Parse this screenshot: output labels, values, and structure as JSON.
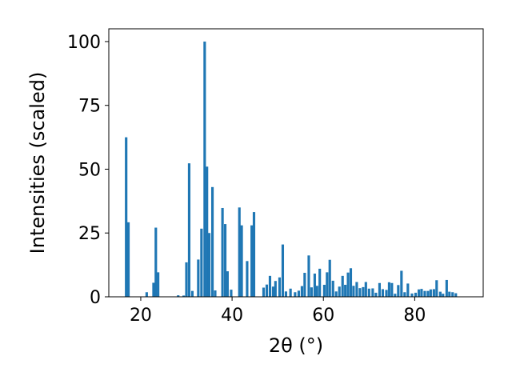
{
  "chart_data": {
    "type": "bar",
    "title": "",
    "xlabel": "2θ (°)",
    "ylabel": "Intensities (scaled)",
    "xlim": [
      13,
      95
    ],
    "ylim": [
      0,
      105
    ],
    "xticks": [
      20,
      40,
      60,
      80
    ],
    "yticks": [
      0,
      25,
      50,
      75,
      100
    ],
    "bar_color": "#1f77b4",
    "grid": false,
    "legend": "none",
    "bar_width": 0.55,
    "points": [
      [
        16.8,
        62.5
      ],
      [
        17.3,
        29.2
      ],
      [
        21.3,
        1.8
      ],
      [
        22.8,
        5.5
      ],
      [
        23.3,
        27.1
      ],
      [
        23.8,
        9.6
      ],
      [
        28.2,
        0.6
      ],
      [
        29.4,
        0.5
      ],
      [
        30.0,
        13.5
      ],
      [
        30.6,
        52.3
      ],
      [
        31.3,
        2.3
      ],
      [
        32.6,
        14.6
      ],
      [
        33.3,
        26.7
      ],
      [
        34.0,
        100.0
      ],
      [
        34.5,
        51.0
      ],
      [
        35.0,
        25.0
      ],
      [
        35.7,
        43.0
      ],
      [
        36.3,
        2.5
      ],
      [
        37.9,
        34.8
      ],
      [
        38.5,
        28.5
      ],
      [
        39.0,
        10.0
      ],
      [
        39.8,
        2.8
      ],
      [
        41.6,
        35.0
      ],
      [
        42.1,
        28.0
      ],
      [
        43.3,
        14.0
      ],
      [
        44.3,
        28.0
      ],
      [
        44.8,
        33.2
      ],
      [
        46.9,
        3.6
      ],
      [
        47.6,
        4.8
      ],
      [
        48.3,
        8.2
      ],
      [
        49.0,
        4.0
      ],
      [
        49.5,
        6.2
      ],
      [
        50.4,
        7.6
      ],
      [
        51.1,
        20.5
      ],
      [
        51.8,
        2.1
      ],
      [
        52.8,
        3.2
      ],
      [
        53.8,
        1.8
      ],
      [
        54.6,
        2.4
      ],
      [
        55.3,
        4.2
      ],
      [
        55.9,
        9.4
      ],
      [
        56.8,
        16.2
      ],
      [
        57.4,
        3.7
      ],
      [
        58.1,
        9.1
      ],
      [
        58.6,
        4.3
      ],
      [
        59.2,
        11.0
      ],
      [
        60.2,
        4.7
      ],
      [
        60.8,
        9.6
      ],
      [
        61.4,
        14.5
      ],
      [
        62.1,
        6.3
      ],
      [
        62.8,
        2.1
      ],
      [
        63.5,
        4.0
      ],
      [
        64.2,
        8.2
      ],
      [
        64.8,
        4.7
      ],
      [
        65.4,
        9.5
      ],
      [
        66.0,
        11.2
      ],
      [
        66.6,
        4.3
      ],
      [
        67.3,
        5.8
      ],
      [
        68.0,
        3.4
      ],
      [
        68.7,
        3.8
      ],
      [
        69.3,
        5.8
      ],
      [
        70.0,
        3.2
      ],
      [
        70.8,
        3.3
      ],
      [
        71.5,
        1.6
      ],
      [
        72.3,
        5.4
      ],
      [
        73.0,
        3.0
      ],
      [
        73.8,
        2.7
      ],
      [
        74.4,
        5.7
      ],
      [
        75.0,
        5.4
      ],
      [
        75.7,
        1.2
      ],
      [
        76.4,
        4.6
      ],
      [
        77.1,
        10.2
      ],
      [
        77.8,
        1.8
      ],
      [
        78.5,
        5.2
      ],
      [
        79.4,
        1.3
      ],
      [
        80.2,
        1.6
      ],
      [
        80.9,
        2.9
      ],
      [
        81.5,
        3.1
      ],
      [
        82.2,
        2.3
      ],
      [
        82.9,
        2.3
      ],
      [
        83.5,
        2.9
      ],
      [
        84.2,
        3.0
      ],
      [
        84.8,
        6.5
      ],
      [
        85.6,
        2.0
      ],
      [
        86.2,
        1.2
      ],
      [
        87.0,
        6.6
      ],
      [
        87.6,
        2.0
      ],
      [
        88.3,
        1.8
      ],
      [
        89.0,
        1.4
      ]
    ]
  }
}
